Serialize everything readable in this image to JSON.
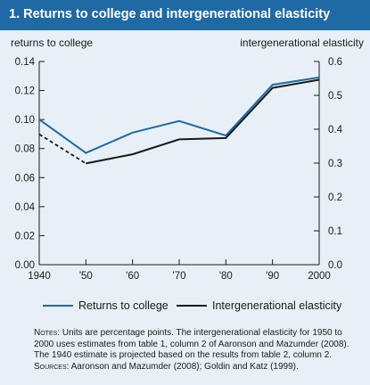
{
  "title": "1. Returns to college and intergenerational elasticity",
  "chart_data": {
    "type": "line",
    "left_axis_label": "returns to college",
    "right_axis_label": "intergenerational elasticity",
    "x_categories": [
      "1940",
      "'50",
      "'60",
      "'70",
      "'80",
      "'90",
      "2000"
    ],
    "left_ylim": [
      0,
      0.14
    ],
    "left_ticks": [
      "0.00",
      "0.02",
      "0.04",
      "0.06",
      "0.08",
      "0.10",
      "0.12",
      "0.14"
    ],
    "right_ylim": [
      0,
      0.6
    ],
    "right_ticks": [
      "0.0",
      "0.1",
      "0.2",
      "0.3",
      "0.4",
      "0.5",
      "0.6"
    ],
    "grid": false,
    "legend_position": "bottom",
    "series": [
      {
        "name": "Returns to college",
        "axis": "left",
        "color": "#1f6aa5",
        "values": [
          0.1,
          0.077,
          0.091,
          0.099,
          0.089,
          0.124,
          0.129
        ]
      },
      {
        "name": "Intergenerational elasticity",
        "axis": "right",
        "color": "#1a1a1a",
        "values": [
          0.385,
          0.299,
          0.326,
          0.37,
          0.374,
          0.522,
          0.546
        ],
        "projected_segment": [
          0,
          1
        ]
      }
    ]
  },
  "notes": {
    "label": "Notes:",
    "text": " Units are percentage points. The intergenerational elasticity for 1950 to 2000 uses estimates from table 1, column 2 of Aaronson and Mazumder (2008). The 1940 estimate is projected based on the results from table 2, column 2.",
    "sources_label": "Sources:",
    "sources_text": " Aaronson and Mazumder (2008); Goldin and Katz (1999)."
  }
}
